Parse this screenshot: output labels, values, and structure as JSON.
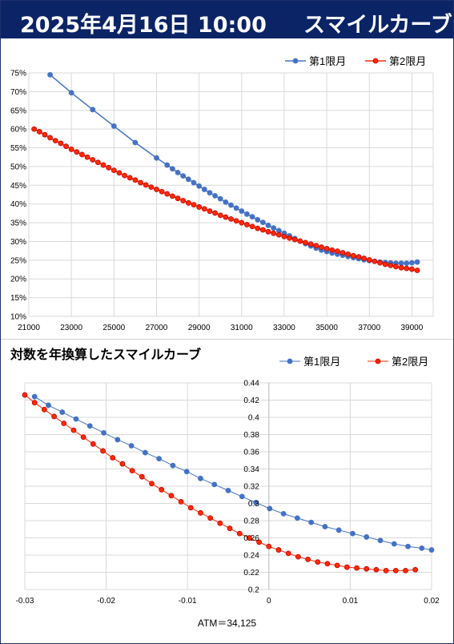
{
  "header": {
    "date": "2025年4月16日 10:00",
    "title": "スマイルカーブ"
  },
  "colors": {
    "series1": "#4472c4",
    "series2": "#ff2a00",
    "series2_edge": "#c00000",
    "grid": "#d9d9d9",
    "header_bg": "#0b2466"
  },
  "chart_data": [
    {
      "type": "line",
      "title": "",
      "xlabel": "",
      "ylabel": "",
      "xlim": [
        21000,
        40000
      ],
      "ylim": [
        10,
        75
      ],
      "x_ticks": [
        "21000",
        "23000",
        "25000",
        "27000",
        "29000",
        "31000",
        "33000",
        "35000",
        "37000",
        "39000"
      ],
      "y_ticks": [
        "10%",
        "15%",
        "20%",
        "25%",
        "30%",
        "35%",
        "40%",
        "45%",
        "50%",
        "55%",
        "60%",
        "65%",
        "70%",
        "75%"
      ],
      "grid": true,
      "legend": "top-right",
      "series": [
        {
          "name": "第1限月",
          "x": [
            22000,
            23000,
            24000,
            25000,
            26000,
            27000,
            27500,
            27750,
            28000,
            28250,
            28500,
            28750,
            29000,
            29250,
            29500,
            29750,
            30000,
            30250,
            30500,
            30750,
            31000,
            31250,
            31500,
            31750,
            32000,
            32250,
            32500,
            32750,
            33000,
            33250,
            33500,
            33750,
            34000,
            34250,
            34500,
            34750,
            35000,
            35250,
            35500,
            35750,
            36000,
            36250,
            36500,
            36750,
            37000,
            37250,
            37500,
            37750,
            38000,
            38250,
            38500,
            38750,
            39000,
            39250
          ],
          "y": [
            74.5,
            69.7,
            65.2,
            60.8,
            56.4,
            52.3,
            50.4,
            49.4,
            48.4,
            47.5,
            46.6,
            45.7,
            44.8,
            43.9,
            43.0,
            42.2,
            41.4,
            40.5,
            39.7,
            38.9,
            38.1,
            37.3,
            36.6,
            35.8,
            35.1,
            34.3,
            33.6,
            32.9,
            32.2,
            31.5,
            30.8,
            30.1,
            29.4,
            28.8,
            28.2,
            27.7,
            27.3,
            26.9,
            26.6,
            26.3,
            26.0,
            25.7,
            25.4,
            25.1,
            24.9,
            24.7,
            24.5,
            24.4,
            24.3,
            24.2,
            24.2,
            24.2,
            24.3,
            24.5
          ]
        },
        {
          "name": "第2限月",
          "x": [
            21250,
            21500,
            21750,
            22000,
            22250,
            22500,
            22750,
            23000,
            23250,
            23500,
            23750,
            24000,
            24250,
            24500,
            24750,
            25000,
            25250,
            25500,
            25750,
            26000,
            26250,
            26500,
            26750,
            27000,
            27250,
            27500,
            27750,
            28000,
            28250,
            28500,
            28750,
            29000,
            29250,
            29500,
            29750,
            30000,
            30250,
            30500,
            30750,
            31000,
            31250,
            31500,
            31750,
            32000,
            32250,
            32500,
            32750,
            33000,
            33250,
            33500,
            33750,
            34000,
            34250,
            34500,
            34750,
            35000,
            35250,
            35500,
            35750,
            36000,
            36250,
            36500,
            36750,
            37000,
            37250,
            37500,
            37750,
            38000,
            38250,
            38500,
            38750,
            39000,
            39250
          ],
          "y": [
            60.0,
            59.3,
            58.5,
            57.7,
            56.9,
            56.2,
            55.4,
            54.6,
            53.9,
            53.2,
            52.5,
            51.8,
            51.1,
            50.4,
            49.7,
            49.0,
            48.3,
            47.6,
            47.0,
            46.4,
            45.7,
            45.1,
            44.5,
            43.9,
            43.3,
            42.7,
            42.1,
            41.5,
            40.9,
            40.3,
            39.8,
            39.2,
            38.7,
            38.1,
            37.6,
            37.0,
            36.5,
            36.0,
            35.5,
            35.0,
            34.5,
            34.0,
            33.5,
            33.1,
            32.6,
            32.2,
            31.8,
            31.3,
            30.9,
            30.5,
            30.1,
            29.7,
            29.3,
            28.9,
            28.5,
            28.1,
            27.7,
            27.4,
            27.0,
            26.6,
            26.2,
            25.9,
            25.5,
            25.1,
            24.7,
            24.3,
            23.9,
            23.6,
            23.3,
            23.0,
            22.8,
            22.6,
            22.3
          ]
        }
      ]
    },
    {
      "type": "scatter",
      "title": "対数を年換算したスマイルカーブ",
      "xlabel": "ATM＝34,125",
      "ylabel": "",
      "xlim": [
        -0.03,
        0.02
      ],
      "ylim": [
        0.2,
        0.44
      ],
      "x_ticks": [
        "-0.03",
        "-0.02",
        "-0.01",
        "0",
        "0.01",
        "0.02"
      ],
      "y_ticks": [
        "0.2",
        "0.22",
        "0.24",
        "0.26",
        "0.28",
        "0.3",
        "0.32",
        "0.34",
        "0.36",
        "0.38",
        "0.4",
        "0.42",
        "0.44"
      ],
      "grid": true,
      "legend": "top-right",
      "series": [
        {
          "name": "第1限月",
          "x": [
            -0.0288,
            -0.0271,
            -0.0254,
            -0.0237,
            -0.022,
            -0.0203,
            -0.0186,
            -0.0169,
            -0.0152,
            -0.0135,
            -0.0118,
            -0.0101,
            -0.0084,
            -0.0067,
            -0.005,
            -0.0033,
            -0.0016,
            0.0001,
            0.0018,
            0.0035,
            0.0052,
            0.0069,
            0.0086,
            0.0103,
            0.012,
            0.0137,
            0.0154,
            0.0171,
            0.0188,
            0.02
          ],
          "y": [
            0.424,
            0.414,
            0.406,
            0.398,
            0.39,
            0.382,
            0.374,
            0.367,
            0.359,
            0.352,
            0.344,
            0.337,
            0.329,
            0.322,
            0.315,
            0.308,
            0.301,
            0.294,
            0.288,
            0.283,
            0.278,
            0.273,
            0.269,
            0.265,
            0.261,
            0.257,
            0.253,
            0.25,
            0.248,
            0.246
          ]
        },
        {
          "name": "第2限月",
          "x": [
            -0.03,
            -0.0288,
            -0.0276,
            -0.0264,
            -0.0252,
            -0.024,
            -0.0228,
            -0.0216,
            -0.0204,
            -0.0192,
            -0.018,
            -0.0168,
            -0.0156,
            -0.0144,
            -0.0132,
            -0.012,
            -0.0108,
            -0.0096,
            -0.0084,
            -0.0072,
            -0.006,
            -0.0048,
            -0.0036,
            -0.0024,
            -0.0012,
            0.0,
            0.0012,
            0.0024,
            0.0036,
            0.0048,
            0.006,
            0.0072,
            0.0084,
            0.0096,
            0.0108,
            0.012,
            0.0132,
            0.0144,
            0.0156,
            0.0168,
            0.018
          ],
          "y": [
            0.426,
            0.417,
            0.409,
            0.401,
            0.393,
            0.385,
            0.377,
            0.369,
            0.361,
            0.353,
            0.346,
            0.338,
            0.331,
            0.323,
            0.316,
            0.309,
            0.302,
            0.295,
            0.289,
            0.283,
            0.277,
            0.271,
            0.265,
            0.26,
            0.255,
            0.25,
            0.246,
            0.242,
            0.238,
            0.235,
            0.232,
            0.23,
            0.228,
            0.226,
            0.225,
            0.224,
            0.223,
            0.222,
            0.222,
            0.222,
            0.223
          ]
        }
      ]
    }
  ]
}
